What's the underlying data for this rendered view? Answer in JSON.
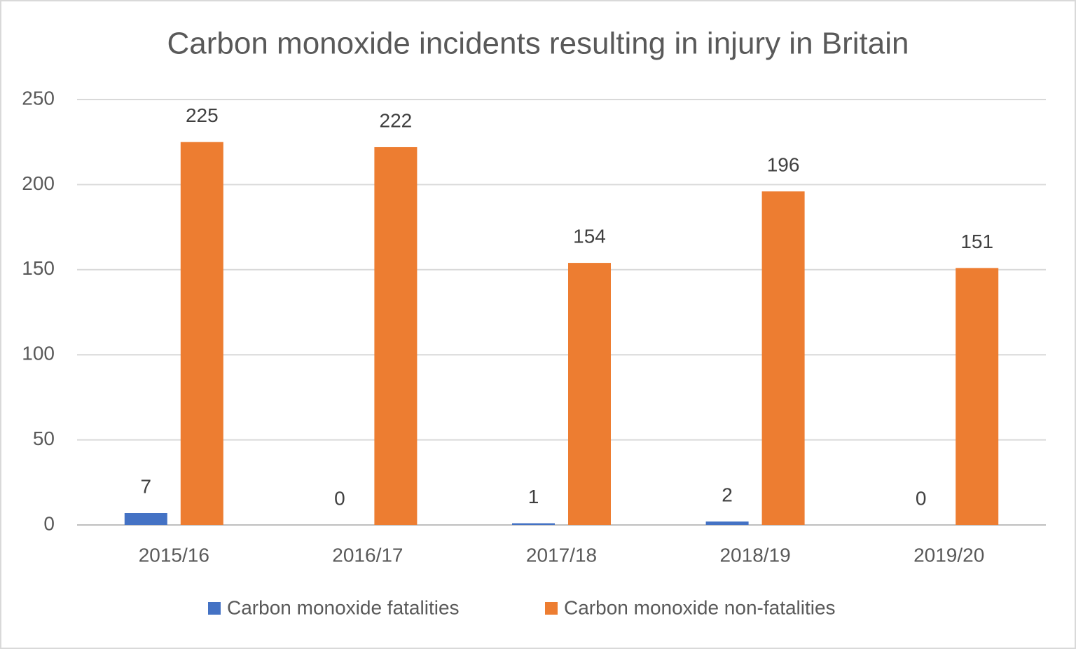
{
  "chart_data": {
    "type": "bar",
    "title": "Carbon monoxide incidents resulting in injury in Britain",
    "categories": [
      "2015/16",
      "2016/17",
      "2017/18",
      "2018/19",
      "2019/20"
    ],
    "series": [
      {
        "name": "Carbon monoxide fatalities",
        "color": "#4472c4",
        "values": [
          7,
          0,
          1,
          2,
          0
        ]
      },
      {
        "name": "Carbon monoxide non-fatalities",
        "color": "#ed7d31",
        "values": [
          225,
          222,
          154,
          196,
          151
        ]
      }
    ],
    "ylim": [
      0,
      250
    ],
    "yticks": [
      0,
      50,
      100,
      150,
      200,
      250
    ],
    "grid": true,
    "legend": "bottom"
  }
}
